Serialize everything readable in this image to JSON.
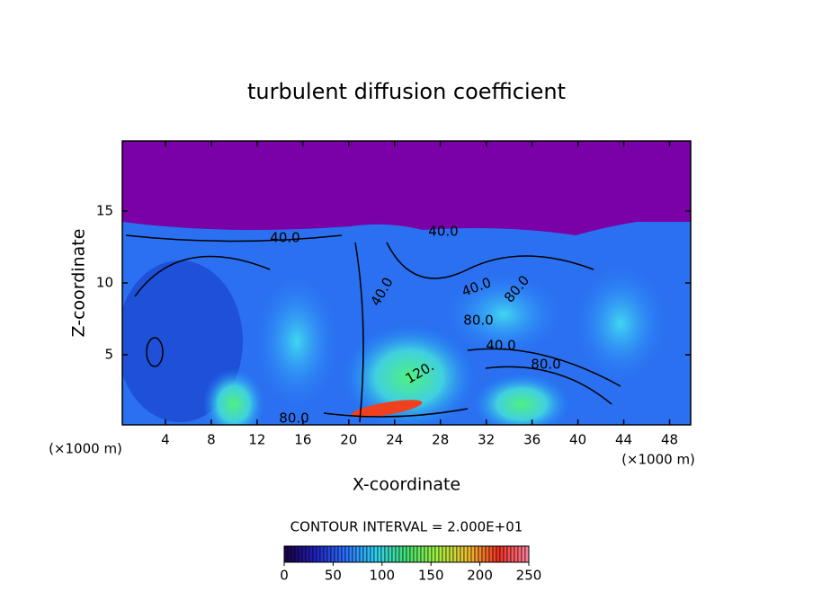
{
  "chart_data": {
    "type": "contour",
    "title": "turbulent diffusion coefficient",
    "xlabel": "X-coordinate",
    "ylabel": "Z-coordinate",
    "x_unit": "(×1000 m)",
    "x_unit_right": "(×1000 m)",
    "subtitle": "CONTOUR INTERVAL = 2.000E+01",
    "xlim": [
      0,
      50
    ],
    "ylim": [
      0,
      20
    ],
    "xticks": [
      4,
      8,
      12,
      16,
      20,
      24,
      28,
      32,
      36,
      40,
      44,
      48
    ],
    "yticks": [
      5,
      10,
      15
    ],
    "contour_labels": [
      "40.0",
      "40.0",
      "40.0",
      "40.0",
      "80.0",
      "80.0",
      "40.0",
      "80.0",
      "120.",
      "80.0"
    ],
    "colorbar": {
      "clim": [
        0,
        250
      ],
      "ticks": [
        0,
        50,
        100,
        150,
        200,
        250
      ],
      "colors": [
        "#1a0040",
        "#2020c0",
        "#2a70ff",
        "#30d0f0",
        "#40e070",
        "#a0f040",
        "#f0c030",
        "#f03020",
        "#ff80a0"
      ]
    }
  }
}
